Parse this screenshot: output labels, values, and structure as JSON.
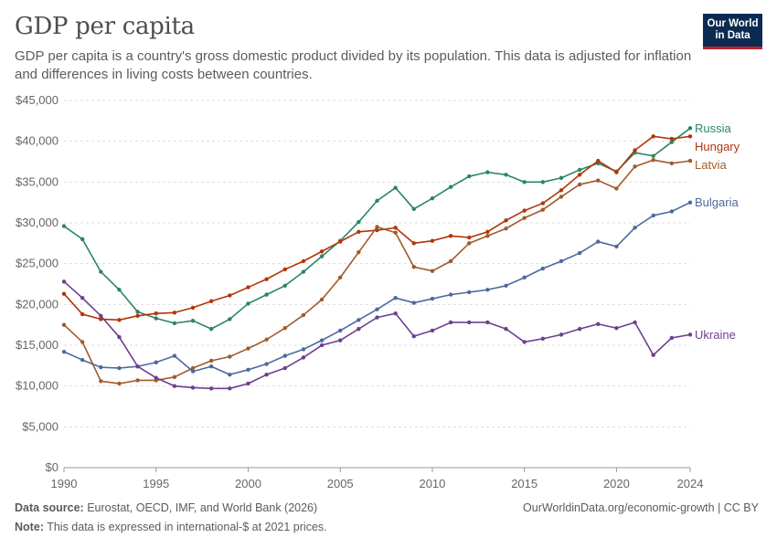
{
  "header": {
    "title": "GDP per capita",
    "subtitle": "GDP per capita is a country's gross domestic product divided by its population. This data is adjusted for inflation and differences in living costs between countries."
  },
  "logo": {
    "line1": "Our World",
    "line2": "in Data",
    "bg": "#0d2b52",
    "accent": "#c0232d"
  },
  "footer": {
    "source_label": "Data source:",
    "source_text": "Eurostat, OECD, IMF, and World Bank (2026)",
    "note_label": "Note:",
    "note_text": "This data is expressed in international-$ at 2021 prices.",
    "citation": "OurWorldinData.org/economic-growth | CC BY"
  },
  "chart_data": {
    "type": "line",
    "title": "GDP per capita",
    "xlim": [
      1990,
      2024
    ],
    "ylim": [
      0,
      45000
    ],
    "x_ticks": [
      1990,
      1995,
      2000,
      2005,
      2010,
      2015,
      2020,
      2024
    ],
    "y_ticks": [
      0,
      5000,
      10000,
      15000,
      20000,
      25000,
      30000,
      35000,
      40000,
      45000
    ],
    "y_tick_labels": [
      "$0",
      "$5,000",
      "$10,000",
      "$15,000",
      "$20,000",
      "$25,000",
      "$30,000",
      "$35,000",
      "$40,000",
      "$45,000"
    ],
    "grid": "horizontal dashed",
    "legend": "right, inline labels",
    "x": [
      1990,
      1991,
      1992,
      1993,
      1994,
      1995,
      1996,
      1997,
      1998,
      1999,
      2000,
      2001,
      2002,
      2003,
      2004,
      2005,
      2006,
      2007,
      2008,
      2009,
      2010,
      2011,
      2012,
      2013,
      2014,
      2015,
      2016,
      2017,
      2018,
      2019,
      2020,
      2021,
      2022,
      2023,
      2024
    ],
    "series": [
      {
        "name": "Russia",
        "color": "#2c8465",
        "values": [
          29600,
          28000,
          24000,
          21800,
          19100,
          18300,
          17700,
          18000,
          17000,
          18200,
          20100,
          21200,
          22300,
          24000,
          25900,
          27800,
          30100,
          32700,
          34300,
          31700,
          33000,
          34400,
          35700,
          36200,
          35900,
          35000,
          35000,
          35500,
          36500,
          37300,
          36300,
          38600,
          38200,
          39900,
          41600
        ]
      },
      {
        "name": "Hungary",
        "color": "#b13507",
        "values": [
          21300,
          18800,
          18200,
          18100,
          18600,
          18900,
          19000,
          19600,
          20400,
          21100,
          22100,
          23100,
          24300,
          25300,
          26500,
          27700,
          28900,
          29100,
          29400,
          27500,
          27800,
          28400,
          28200,
          28900,
          30300,
          31500,
          32400,
          34000,
          35900,
          37600,
          36200,
          38900,
          40600,
          40300,
          40600
        ]
      },
      {
        "name": "Latvia",
        "color": "#a2592a",
        "values": [
          17500,
          15400,
          10600,
          10300,
          10700,
          10700,
          11100,
          12200,
          13100,
          13600,
          14600,
          15700,
          17100,
          18700,
          20600,
          23300,
          26400,
          29500,
          28800,
          24600,
          24100,
          25300,
          27500,
          28400,
          29300,
          30600,
          31600,
          33200,
          34700,
          35200,
          34200,
          36900,
          37700,
          37300,
          37600
        ]
      },
      {
        "name": "Bulgaria",
        "color": "#4c6a9c",
        "values": [
          14200,
          13200,
          12300,
          12200,
          12400,
          12900,
          13700,
          11800,
          12400,
          11400,
          12000,
          12700,
          13700,
          14500,
          15600,
          16800,
          18100,
          19400,
          20800,
          20200,
          20700,
          21200,
          21500,
          21800,
          22300,
          23300,
          24400,
          25300,
          26300,
          27700,
          27100,
          29400,
          30900,
          31400,
          32500
        ]
      },
      {
        "name": "Ukraine",
        "color": "#6d3e91",
        "values": [
          22800,
          20800,
          18600,
          16000,
          12400,
          11000,
          10000,
          9800,
          9700,
          9700,
          10300,
          11400,
          12200,
          13500,
          15000,
          15600,
          17000,
          18400,
          18900,
          16100,
          16800,
          17800,
          17800,
          17800,
          17000,
          15400,
          15800,
          16300,
          17000,
          17600,
          17100,
          17800,
          13800,
          15900,
          16300
        ]
      }
    ]
  }
}
